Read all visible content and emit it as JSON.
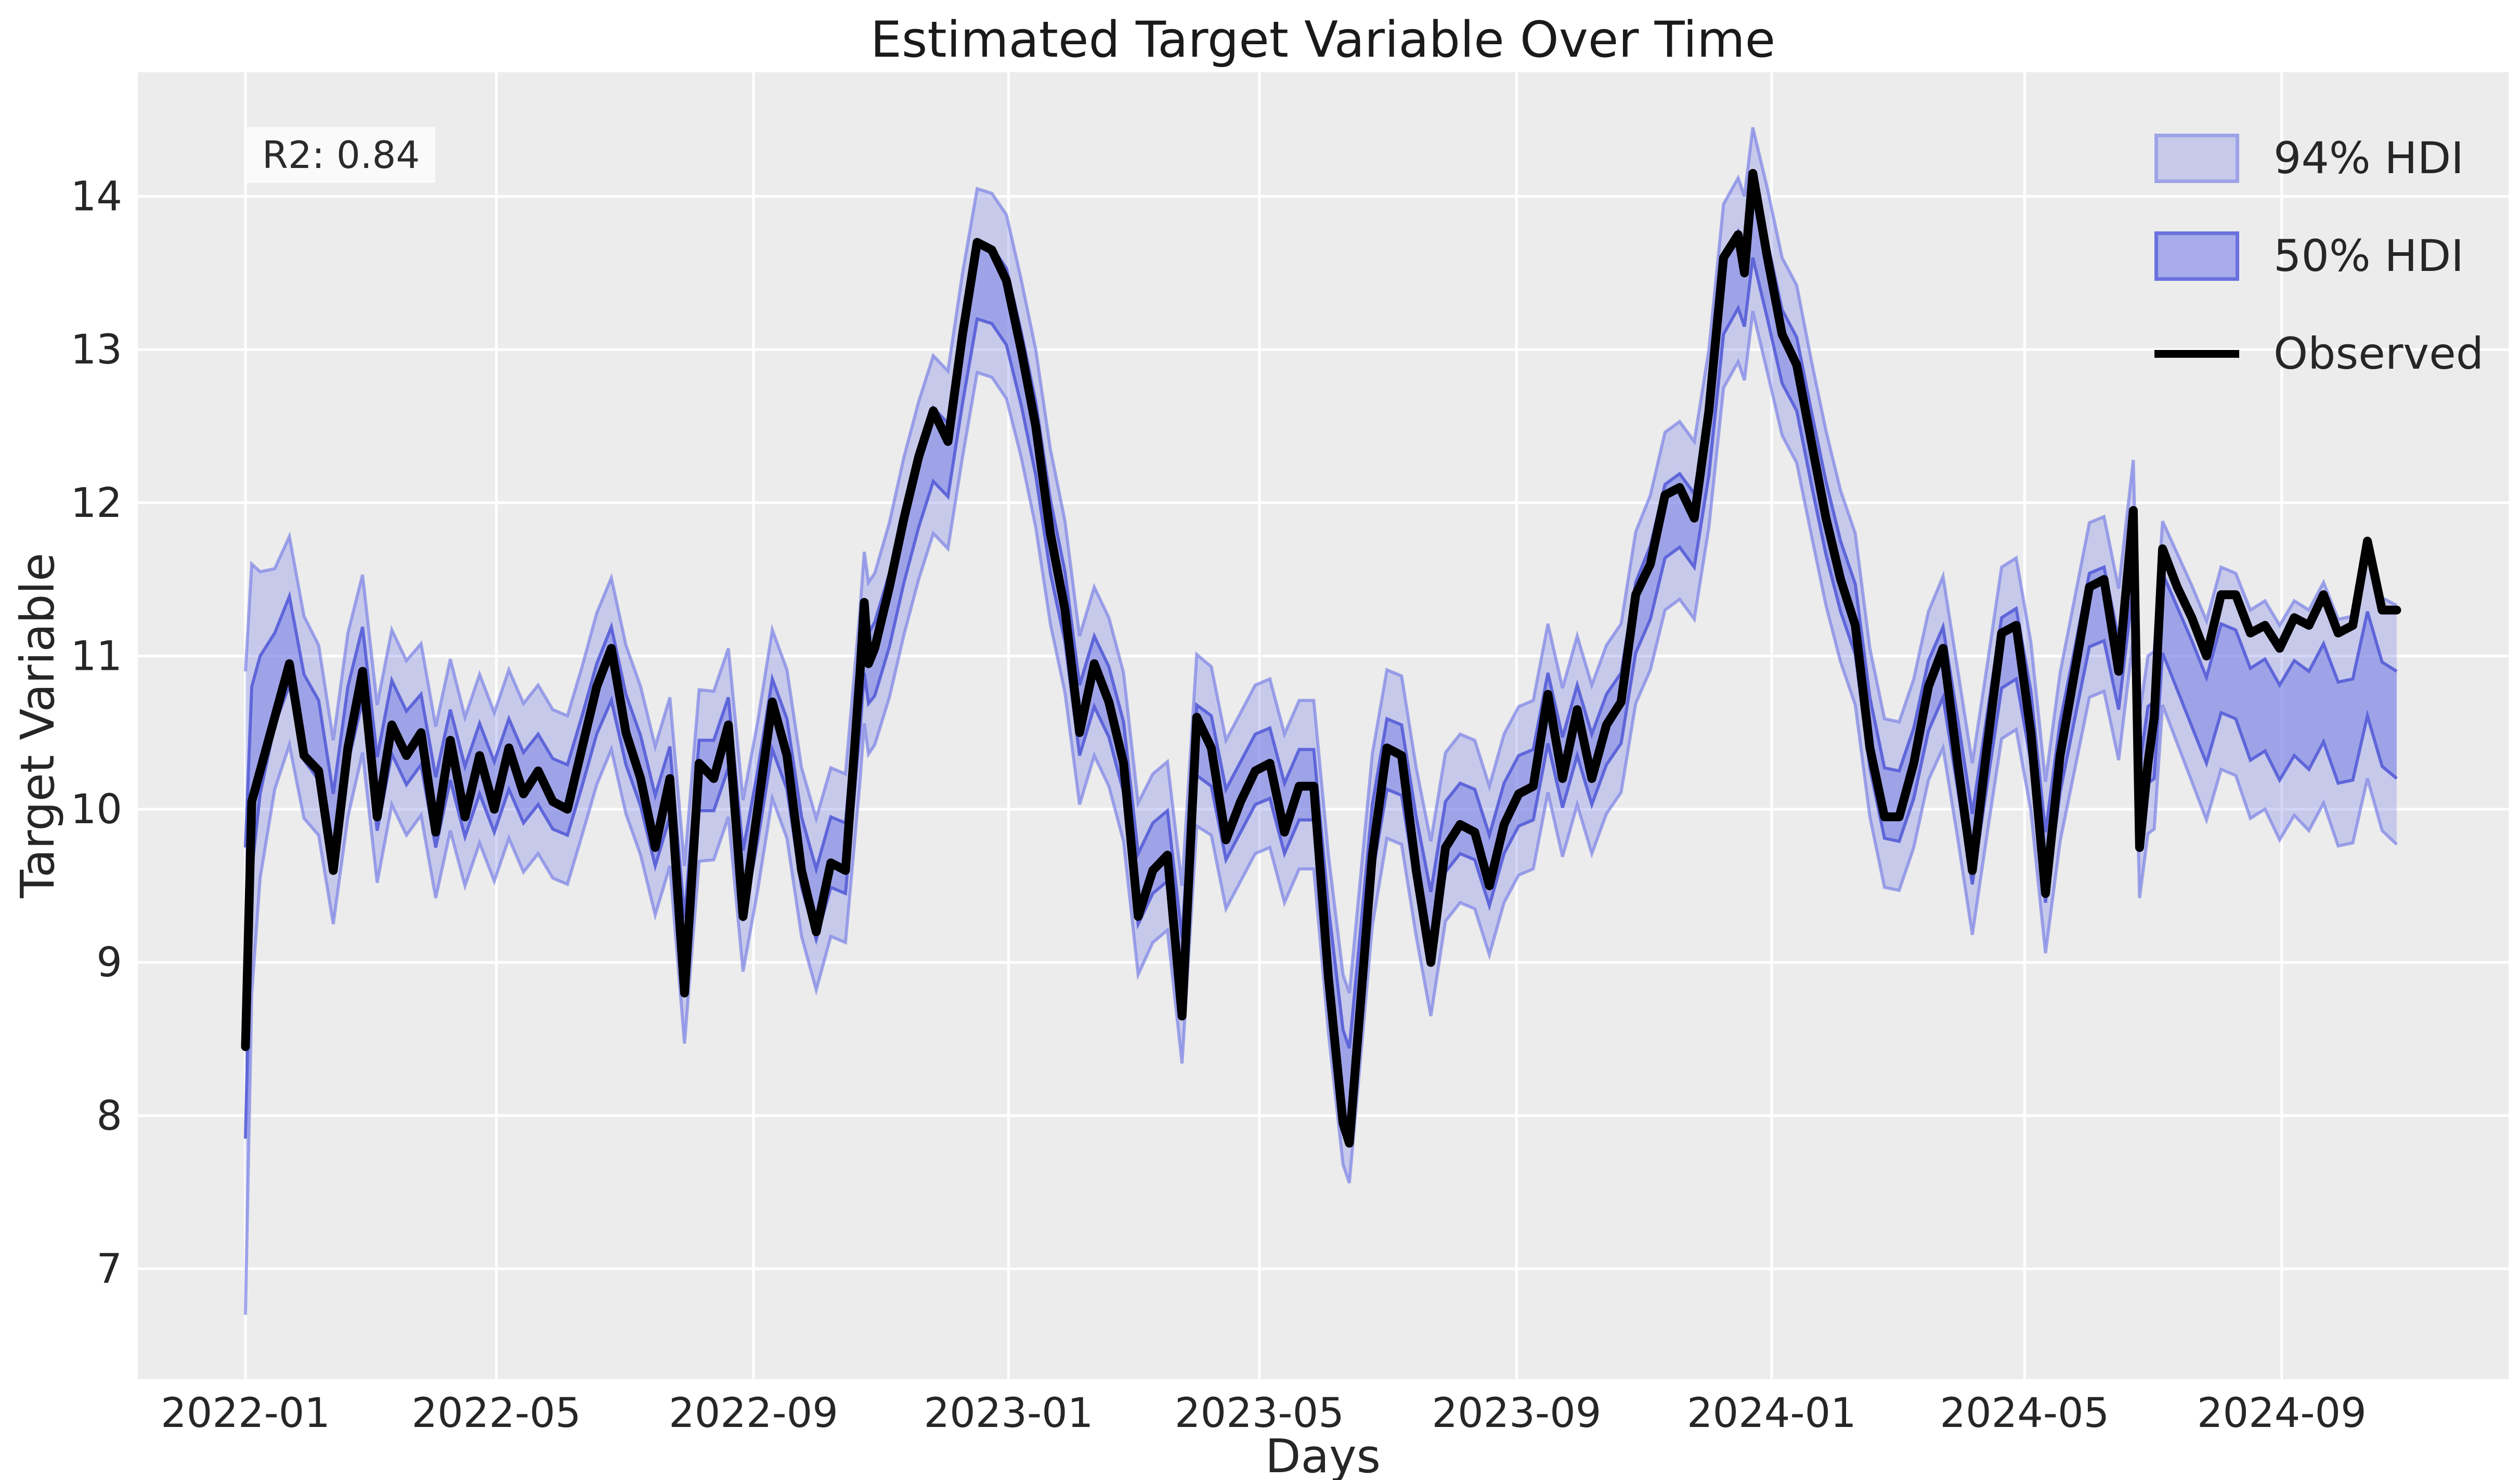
{
  "page": {
    "background": "#ffffff"
  },
  "chart_data": {
    "type": "line",
    "title": "Estimated Target Variable Over Time",
    "xlabel": "Days",
    "ylabel": "Target Variable",
    "annotation": "R2: 0.84",
    "legend_position": "upper right",
    "grid": true,
    "legend": [
      {
        "label": "94% HDI",
        "kind": "band-light"
      },
      {
        "label": "50% HDI",
        "kind": "band-dark"
      },
      {
        "label": "Observed",
        "kind": "line"
      }
    ],
    "colors": {
      "plot_bg": "#ececec",
      "grid": "#ffffff",
      "band_fill": "rgba(124,131,230,0.33)",
      "band_fill_inner": "rgba(124,131,230,0.55)",
      "band_edge_94": "rgba(124,131,230,0.70)",
      "band_edge_50": "rgba(85,93,215,0.90)",
      "observed": "#000000",
      "tick_text": "#262626",
      "annotation_bg": "#fafafa"
    },
    "x_epoch": "2022-01-01",
    "xlim_days": [
      -51.5,
      1082.5
    ],
    "ylim": [
      6.28,
      14.81
    ],
    "yticks": [
      7,
      8,
      9,
      10,
      11,
      12,
      13,
      14
    ],
    "xticks": [
      {
        "date": "2022-01-01",
        "label": "2022-01"
      },
      {
        "date": "2022-05-01",
        "label": "2022-05"
      },
      {
        "date": "2022-09-01",
        "label": "2022-09"
      },
      {
        "date": "2023-01-01",
        "label": "2023-01"
      },
      {
        "date": "2023-05-01",
        "label": "2023-05"
      },
      {
        "date": "2023-09-01",
        "label": "2023-09"
      },
      {
        "date": "2024-01-01",
        "label": "2024-01"
      },
      {
        "date": "2024-05-01",
        "label": "2024-05"
      },
      {
        "date": "2024-09-01",
        "label": "2024-09"
      }
    ],
    "columns": [
      "date",
      "observed",
      "predicted_mean",
      "hdi94_halfwidth",
      "hdi50_halfwidth"
    ],
    "rows": [
      [
        "2022-01-01",
        8.45,
        8.8,
        2.1,
        0.95
      ],
      [
        "2022-01-04",
        10.05,
        10.2,
        1.4,
        0.6
      ],
      [
        "2022-01-08",
        10.25,
        10.55,
        1.0,
        0.45
      ],
      [
        "2022-01-15",
        10.6,
        10.85,
        0.72,
        0.3
      ],
      [
        "2022-01-22",
        10.95,
        11.1,
        0.68,
        0.29
      ],
      [
        "2022-01-29",
        10.35,
        10.6,
        0.66,
        0.28
      ],
      [
        "2022-02-05",
        10.25,
        10.45,
        0.62,
        0.26
      ],
      [
        "2022-02-12",
        9.6,
        9.85,
        0.6,
        0.25
      ],
      [
        "2022-02-19",
        10.4,
        10.55,
        0.6,
        0.25
      ],
      [
        "2022-02-26",
        10.9,
        10.95,
        0.58,
        0.24
      ],
      [
        "2022-03-05",
        9.95,
        10.1,
        0.58,
        0.24
      ],
      [
        "2022-03-12",
        10.55,
        10.6,
        0.57,
        0.24
      ],
      [
        "2022-03-19",
        10.35,
        10.4,
        0.57,
        0.24
      ],
      [
        "2022-03-26",
        10.5,
        10.52,
        0.56,
        0.23
      ],
      [
        "2022-04-02",
        9.85,
        9.98,
        0.56,
        0.23
      ],
      [
        "2022-04-09",
        10.45,
        10.42,
        0.56,
        0.23
      ],
      [
        "2022-04-16",
        9.95,
        10.05,
        0.55,
        0.23
      ],
      [
        "2022-04-23",
        10.35,
        10.33,
        0.55,
        0.23
      ],
      [
        "2022-04-30",
        10.0,
        10.08,
        0.55,
        0.23
      ],
      [
        "2022-05-07",
        10.4,
        10.36,
        0.55,
        0.23
      ],
      [
        "2022-05-14",
        10.1,
        10.14,
        0.55,
        0.23
      ],
      [
        "2022-05-21",
        10.25,
        10.26,
        0.55,
        0.23
      ],
      [
        "2022-05-28",
        10.05,
        10.1,
        0.55,
        0.23
      ],
      [
        "2022-06-04",
        10.0,
        10.06,
        0.55,
        0.23
      ],
      [
        "2022-06-11",
        10.4,
        10.38,
        0.55,
        0.23
      ],
      [
        "2022-06-18",
        10.8,
        10.72,
        0.56,
        0.23
      ],
      [
        "2022-06-25",
        11.05,
        10.95,
        0.56,
        0.24
      ],
      [
        "2022-07-02",
        10.5,
        10.52,
        0.55,
        0.23
      ],
      [
        "2022-07-09",
        10.2,
        10.25,
        0.55,
        0.23
      ],
      [
        "2022-07-16",
        9.75,
        9.86,
        0.55,
        0.23
      ],
      [
        "2022-07-23",
        10.2,
        10.18,
        0.55,
        0.23
      ],
      [
        "2022-07-30",
        8.8,
        9.05,
        0.58,
        0.24
      ],
      [
        "2022-08-06",
        10.3,
        10.22,
        0.56,
        0.23
      ],
      [
        "2022-08-13",
        10.2,
        10.22,
        0.55,
        0.23
      ],
      [
        "2022-08-20",
        10.55,
        10.5,
        0.55,
        0.23
      ],
      [
        "2022-08-27",
        9.3,
        9.5,
        0.56,
        0.23
      ],
      [
        "2022-09-03",
        10.0,
        10.02,
        0.55,
        0.23
      ],
      [
        "2022-09-10",
        10.7,
        10.62,
        0.55,
        0.23
      ],
      [
        "2022-09-17",
        10.35,
        10.36,
        0.55,
        0.23
      ],
      [
        "2022-09-24",
        9.6,
        9.72,
        0.55,
        0.23
      ],
      [
        "2022-10-01",
        9.2,
        9.38,
        0.56,
        0.23
      ],
      [
        "2022-10-08",
        9.65,
        9.72,
        0.55,
        0.23
      ],
      [
        "2022-10-15",
        9.6,
        9.68,
        0.55,
        0.23
      ],
      [
        "2022-10-22",
        10.9,
        10.75,
        0.56,
        0.23
      ],
      [
        "2022-10-24",
        11.35,
        11.12,
        0.56,
        0.23
      ],
      [
        "2022-10-26",
        10.95,
        10.92,
        0.56,
        0.23
      ],
      [
        "2022-10-29",
        11.05,
        10.98,
        0.56,
        0.24
      ],
      [
        "2022-11-05",
        11.45,
        11.3,
        0.57,
        0.24
      ],
      [
        "2022-11-12",
        11.9,
        11.72,
        0.58,
        0.24
      ],
      [
        "2022-11-19",
        12.3,
        12.08,
        0.58,
        0.24
      ],
      [
        "2022-11-26",
        12.6,
        12.38,
        0.58,
        0.24
      ],
      [
        "2022-12-03",
        12.4,
        12.28,
        0.58,
        0.24
      ],
      [
        "2022-12-10",
        13.1,
        12.9,
        0.6,
        0.25
      ],
      [
        "2022-12-17",
        13.7,
        13.45,
        0.6,
        0.25
      ],
      [
        "2022-12-24",
        13.65,
        13.42,
        0.6,
        0.25
      ],
      [
        "2022-12-31",
        13.45,
        13.28,
        0.6,
        0.25
      ],
      [
        "2023-01-07",
        13.0,
        12.88,
        0.58,
        0.24
      ],
      [
        "2023-01-14",
        12.5,
        12.42,
        0.58,
        0.24
      ],
      [
        "2023-01-21",
        11.8,
        11.78,
        0.57,
        0.24
      ],
      [
        "2023-01-28",
        11.3,
        11.32,
        0.56,
        0.23
      ],
      [
        "2023-02-04",
        10.5,
        10.58,
        0.55,
        0.23
      ],
      [
        "2023-02-11",
        10.95,
        10.9,
        0.55,
        0.23
      ],
      [
        "2023-02-18",
        10.7,
        10.7,
        0.55,
        0.23
      ],
      [
        "2023-02-25",
        10.3,
        10.34,
        0.55,
        0.23
      ],
      [
        "2023-03-04",
        9.3,
        9.48,
        0.56,
        0.23
      ],
      [
        "2023-03-11",
        9.6,
        9.68,
        0.55,
        0.23
      ],
      [
        "2023-03-18",
        9.7,
        9.76,
        0.55,
        0.23
      ],
      [
        "2023-03-25",
        8.65,
        8.92,
        0.58,
        0.24
      ],
      [
        "2023-04-01",
        10.6,
        10.45,
        0.56,
        0.23
      ],
      [
        "2023-04-08",
        10.4,
        10.38,
        0.55,
        0.23
      ],
      [
        "2023-04-15",
        9.8,
        9.9,
        0.55,
        0.23
      ],
      [
        "2023-04-22",
        10.05,
        10.08,
        0.55,
        0.23
      ],
      [
        "2023-04-29",
        10.25,
        10.26,
        0.55,
        0.23
      ],
      [
        "2023-05-06",
        10.3,
        10.3,
        0.55,
        0.23
      ],
      [
        "2023-05-13",
        9.85,
        9.94,
        0.55,
        0.23
      ],
      [
        "2023-05-20",
        10.15,
        10.16,
        0.55,
        0.23
      ],
      [
        "2023-05-27",
        10.15,
        10.16,
        0.55,
        0.23
      ],
      [
        "2023-06-03",
        8.9,
        9.12,
        0.58,
        0.24
      ],
      [
        "2023-06-10",
        7.95,
        8.3,
        0.62,
        0.26
      ],
      [
        "2023-06-13",
        7.82,
        8.18,
        0.62,
        0.26
      ],
      [
        "2023-06-17",
        8.5,
        8.76,
        0.6,
        0.25
      ],
      [
        "2023-06-24",
        9.7,
        9.8,
        0.56,
        0.23
      ],
      [
        "2023-07-01",
        10.4,
        10.36,
        0.55,
        0.23
      ],
      [
        "2023-07-08",
        10.35,
        10.32,
        0.55,
        0.23
      ],
      [
        "2023-07-15",
        9.6,
        9.72,
        0.55,
        0.23
      ],
      [
        "2023-07-22",
        9.0,
        9.22,
        0.57,
        0.24
      ],
      [
        "2023-07-29",
        9.75,
        9.82,
        0.55,
        0.23
      ],
      [
        "2023-08-05",
        9.9,
        9.94,
        0.55,
        0.23
      ],
      [
        "2023-08-12",
        9.85,
        9.9,
        0.55,
        0.23
      ],
      [
        "2023-08-19",
        9.5,
        9.6,
        0.55,
        0.23
      ],
      [
        "2023-08-26",
        9.9,
        9.94,
        0.55,
        0.23
      ],
      [
        "2023-09-02",
        10.1,
        10.12,
        0.55,
        0.23
      ],
      [
        "2023-09-09",
        10.15,
        10.16,
        0.55,
        0.23
      ],
      [
        "2023-09-16",
        10.75,
        10.66,
        0.55,
        0.23
      ],
      [
        "2023-09-23",
        10.2,
        10.24,
        0.55,
        0.23
      ],
      [
        "2023-09-30",
        10.65,
        10.58,
        0.55,
        0.23
      ],
      [
        "2023-10-07",
        10.2,
        10.26,
        0.55,
        0.23
      ],
      [
        "2023-10-14",
        10.55,
        10.52,
        0.55,
        0.23
      ],
      [
        "2023-10-21",
        10.7,
        10.66,
        0.55,
        0.23
      ],
      [
        "2023-10-28",
        11.4,
        11.25,
        0.56,
        0.23
      ],
      [
        "2023-11-04",
        11.6,
        11.48,
        0.57,
        0.24
      ],
      [
        "2023-11-11",
        12.05,
        11.88,
        0.58,
        0.24
      ],
      [
        "2023-11-18",
        12.1,
        11.95,
        0.58,
        0.24
      ],
      [
        "2023-11-25",
        11.9,
        11.82,
        0.58,
        0.24
      ],
      [
        "2023-12-02",
        12.6,
        12.42,
        0.58,
        0.24
      ],
      [
        "2023-12-09",
        13.6,
        13.35,
        0.6,
        0.25
      ],
      [
        "2023-12-16",
        13.75,
        13.52,
        0.6,
        0.25
      ],
      [
        "2023-12-19",
        13.5,
        13.4,
        0.6,
        0.25
      ],
      [
        "2023-12-23",
        14.15,
        13.85,
        0.6,
        0.25
      ],
      [
        "2023-12-30",
        13.6,
        13.45,
        0.6,
        0.25
      ],
      [
        "2024-01-06",
        13.1,
        13.02,
        0.58,
        0.24
      ],
      [
        "2024-01-13",
        12.9,
        12.84,
        0.58,
        0.24
      ],
      [
        "2024-01-20",
        12.4,
        12.36,
        0.57,
        0.24
      ],
      [
        "2024-01-27",
        11.9,
        11.9,
        0.57,
        0.24
      ],
      [
        "2024-02-03",
        11.5,
        11.52,
        0.56,
        0.23
      ],
      [
        "2024-02-10",
        11.2,
        11.24,
        0.56,
        0.23
      ],
      [
        "2024-02-17",
        10.4,
        10.5,
        0.55,
        0.23
      ],
      [
        "2024-02-24",
        9.95,
        10.04,
        0.55,
        0.23
      ],
      [
        "2024-03-02",
        9.95,
        10.02,
        0.55,
        0.23
      ],
      [
        "2024-03-09",
        10.3,
        10.3,
        0.55,
        0.23
      ],
      [
        "2024-03-16",
        10.8,
        10.74,
        0.55,
        0.23
      ],
      [
        "2024-03-23",
        11.05,
        10.96,
        0.56,
        0.23
      ],
      [
        "2024-03-30",
        10.3,
        10.36,
        0.55,
        0.23
      ],
      [
        "2024-04-06",
        9.6,
        9.74,
        0.56,
        0.23
      ],
      [
        "2024-04-13",
        10.4,
        10.38,
        0.55,
        0.23
      ],
      [
        "2024-04-20",
        11.15,
        11.02,
        0.56,
        0.23
      ],
      [
        "2024-04-27",
        11.2,
        11.08,
        0.56,
        0.23
      ],
      [
        "2024-05-04",
        10.5,
        10.54,
        0.55,
        0.23
      ],
      [
        "2024-05-11",
        9.45,
        9.62,
        0.56,
        0.23
      ],
      [
        "2024-05-18",
        10.35,
        10.34,
        0.55,
        0.23
      ],
      [
        "2024-05-25",
        10.9,
        10.82,
        0.56,
        0.23
      ],
      [
        "2024-06-01",
        11.45,
        11.3,
        0.57,
        0.24
      ],
      [
        "2024-06-08",
        11.5,
        11.34,
        0.57,
        0.24
      ],
      [
        "2024-06-15",
        10.9,
        10.88,
        0.56,
        0.23
      ],
      [
        "2024-06-22",
        11.95,
        11.7,
        0.58,
        0.24
      ],
      [
        "2024-06-25",
        9.75,
        10.02,
        0.6,
        0.26
      ],
      [
        "2024-06-29",
        10.3,
        10.42,
        0.58,
        0.25
      ],
      [
        "2024-07-02",
        10.6,
        10.45,
        0.58,
        0.25
      ],
      [
        "2024-07-06",
        11.7,
        11.28,
        0.6,
        0.26
      ],
      [
        "2024-07-13",
        11.45,
        11.05,
        0.62,
        0.27
      ],
      [
        "2024-07-20",
        11.25,
        10.82,
        0.64,
        0.28
      ],
      [
        "2024-07-27",
        11.0,
        10.58,
        0.65,
        0.28
      ],
      [
        "2024-08-03",
        11.4,
        10.92,
        0.66,
        0.29
      ],
      [
        "2024-08-10",
        11.4,
        10.88,
        0.66,
        0.29
      ],
      [
        "2024-08-17",
        11.15,
        10.62,
        0.68,
        0.3
      ],
      [
        "2024-08-24",
        11.2,
        10.68,
        0.68,
        0.3
      ],
      [
        "2024-08-31",
        11.05,
        10.5,
        0.7,
        0.31
      ],
      [
        "2024-09-07",
        11.25,
        10.66,
        0.7,
        0.31
      ],
      [
        "2024-09-14",
        11.2,
        10.58,
        0.72,
        0.32
      ],
      [
        "2024-09-21",
        11.4,
        10.76,
        0.72,
        0.32
      ],
      [
        "2024-09-28",
        11.15,
        10.5,
        0.74,
        0.33
      ],
      [
        "2024-10-05",
        11.2,
        10.52,
        0.74,
        0.33
      ],
      [
        "2024-10-12",
        11.75,
        10.95,
        0.75,
        0.34
      ],
      [
        "2024-10-19",
        11.3,
        10.62,
        0.76,
        0.34
      ],
      [
        "2024-10-26",
        11.3,
        10.55,
        0.78,
        0.35
      ]
    ]
  }
}
